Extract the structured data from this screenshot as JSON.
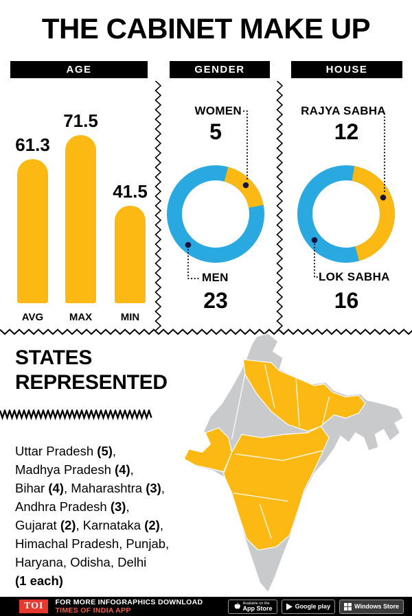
{
  "title": "THE CABINET MAKE UP",
  "colors": {
    "yellow": "#FDB913",
    "blue": "#2AA9E0",
    "red": "#E8392F",
    "red_light": "#F15B40",
    "map_grey": "#C9CACC"
  },
  "chart_data": [
    {
      "type": "bar",
      "title": "AGE",
      "categories": [
        "AVG",
        "MAX",
        "MIN"
      ],
      "values": [
        61.3,
        71.5,
        41.5
      ],
      "bar_color": "#FDB913",
      "ylim": [
        0,
        71.5
      ]
    },
    {
      "type": "pie",
      "title": "GENDER",
      "slices": [
        {
          "label": "WOMEN",
          "value": 5,
          "color": "#FDB913"
        },
        {
          "label": "MEN",
          "value": 23,
          "color": "#2AA9E0"
        }
      ]
    },
    {
      "type": "pie",
      "title": "HOUSE",
      "slices": [
        {
          "label": "RAJYA SABHA",
          "value": 12,
          "color": "#FDB913"
        },
        {
          "label": "LOK SABHA",
          "value": 16,
          "color": "#2AA9E0"
        }
      ]
    }
  ],
  "states": {
    "heading": "STATES\nREPRESENTED",
    "segments": [
      [
        "Uttar Pradesh ",
        0
      ],
      [
        "(5)",
        1
      ],
      [
        ",\n",
        0
      ],
      [
        "Madhya Pradesh ",
        0
      ],
      [
        "(4)",
        1
      ],
      [
        ",\n",
        0
      ],
      [
        "Bihar ",
        0
      ],
      [
        "(4)",
        1
      ],
      [
        ", Maharashtra ",
        0
      ],
      [
        "(3)",
        1
      ],
      [
        ",\n",
        0
      ],
      [
        "Andhra Pradesh ",
        0
      ],
      [
        "(3)",
        1
      ],
      [
        ",\n",
        0
      ],
      [
        "Gujarat ",
        0
      ],
      [
        "(2)",
        1
      ],
      [
        ", Karnataka ",
        0
      ],
      [
        "(2)",
        1
      ],
      [
        ",\n",
        0
      ],
      [
        "Himachal Pradesh, Punjab,\n",
        0
      ],
      [
        "Haryana, Odisha, Delhi\n",
        0
      ],
      [
        "(1 each)",
        1
      ]
    ]
  },
  "footer": {
    "logo": "TOI",
    "text": "FOR MORE  INFOGRAPHICS DOWNLOAD",
    "highlight": "TIMES OF INDIA APP",
    "badges": [
      {
        "line1": "Available on the",
        "line2": "App Store",
        "icon": "apple-icon"
      },
      {
        "line1": "",
        "line2": "Google play",
        "icon": "google-play-icon"
      },
      {
        "line1": "",
        "line2": "Windows Store",
        "icon": "windows-icon"
      }
    ]
  }
}
